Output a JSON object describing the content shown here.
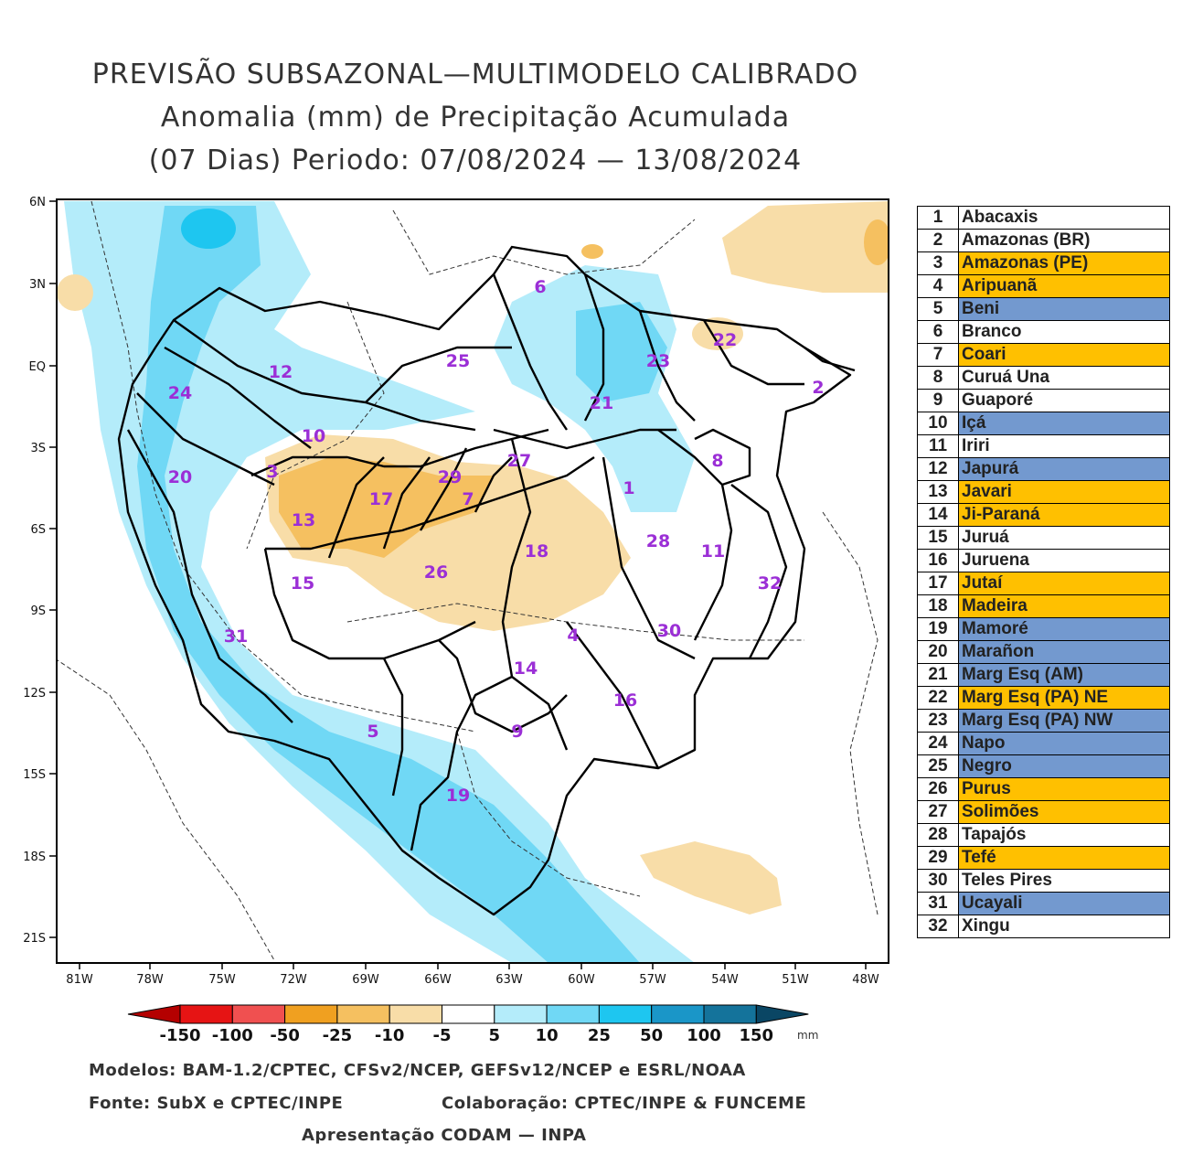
{
  "title": {
    "line1": "PREVISÃO SUBSAZONAL—MULTIMODELO CALIBRADO",
    "line2": "Anomalia (mm) de Precipitação Acumulada",
    "line3": "(07 Dias) Periodo: 07/08/2024 — 13/08/2024"
  },
  "axes": {
    "lat_labels": [
      "6N",
      "3N",
      "EQ",
      "3S",
      "6S",
      "9S",
      "12S",
      "15S",
      "18S",
      "21S"
    ],
    "lon_labels": [
      "81W",
      "78W",
      "75W",
      "72W",
      "69W",
      "66W",
      "63W",
      "60W",
      "57W",
      "54W",
      "51W",
      "48W"
    ]
  },
  "basin_labels": [
    "1",
    "2",
    "3",
    "4",
    "5",
    "6",
    "7",
    "8",
    "9",
    "10",
    "11",
    "12",
    "13",
    "14",
    "15",
    "16",
    "17",
    "18",
    "19",
    "20",
    "21",
    "22",
    "23",
    "24",
    "25",
    "26",
    "27",
    "28",
    "29",
    "30",
    "31",
    "32"
  ],
  "legend": [
    {
      "num": "1",
      "name": "Abacaxis",
      "color": "#ffffff"
    },
    {
      "num": "2",
      "name": "Amazonas (BR)",
      "color": "#ffffff"
    },
    {
      "num": "3",
      "name": "Amazonas (PE)",
      "color": "#ffc000"
    },
    {
      "num": "4",
      "name": "Aripuanã",
      "color": "#ffc000"
    },
    {
      "num": "5",
      "name": "Beni",
      "color": "#7399cf"
    },
    {
      "num": "6",
      "name": "Branco",
      "color": "#ffffff"
    },
    {
      "num": "7",
      "name": "Coari",
      "color": "#ffc000"
    },
    {
      "num": "8",
      "name": "Curuá Una",
      "color": "#ffffff"
    },
    {
      "num": "9",
      "name": "Guaporé",
      "color": "#ffffff"
    },
    {
      "num": "10",
      "name": "Içá",
      "color": "#7399cf"
    },
    {
      "num": "11",
      "name": "Iriri",
      "color": "#ffffff"
    },
    {
      "num": "12",
      "name": "Japurá",
      "color": "#7399cf"
    },
    {
      "num": "13",
      "name": "Javari",
      "color": "#ffc000"
    },
    {
      "num": "14",
      "name": "Ji-Paraná",
      "color": "#ffc000"
    },
    {
      "num": "15",
      "name": "Juruá",
      "color": "#ffffff"
    },
    {
      "num": "16",
      "name": "Juruena",
      "color": "#ffffff"
    },
    {
      "num": "17",
      "name": "Jutaí",
      "color": "#ffc000"
    },
    {
      "num": "18",
      "name": "Madeira",
      "color": "#ffc000"
    },
    {
      "num": "19",
      "name": "Mamoré",
      "color": "#7399cf"
    },
    {
      "num": "20",
      "name": "Marañon",
      "color": "#7399cf"
    },
    {
      "num": "21",
      "name": "Marg Esq (AM)",
      "color": "#7399cf"
    },
    {
      "num": "22",
      "name": "Marg Esq (PA) NE",
      "color": "#ffc000"
    },
    {
      "num": "23",
      "name": "Marg Esq (PA) NW",
      "color": "#7399cf"
    },
    {
      "num": "24",
      "name": "Napo",
      "color": "#7399cf"
    },
    {
      "num": "25",
      "name": "Negro",
      "color": "#7399cf"
    },
    {
      "num": "26",
      "name": "Purus",
      "color": "#ffc000"
    },
    {
      "num": "27",
      "name": "Solimões",
      "color": "#ffc000"
    },
    {
      "num": "28",
      "name": "Tapajós",
      "color": "#ffffff"
    },
    {
      "num": "29",
      "name": "Tefé",
      "color": "#ffc000"
    },
    {
      "num": "30",
      "name": "Teles Pires",
      "color": "#ffffff"
    },
    {
      "num": "31",
      "name": "Ucayali",
      "color": "#7399cf"
    },
    {
      "num": "32",
      "name": "Xingu",
      "color": "#ffffff"
    }
  ],
  "colorbar": {
    "labels": [
      "-150",
      "-100",
      "-50",
      "-25",
      "-10",
      "-5",
      "5",
      "10",
      "25",
      "50",
      "100",
      "150"
    ],
    "unit": "mm",
    "colors": [
      "#b40000",
      "#e61414",
      "#f05050",
      "#f0a020",
      "#f5c060",
      "#f8dda8",
      "#ffffff",
      "#b4ecfa",
      "#70d8f5",
      "#1ec6f0",
      "#1a96c8",
      "#14739b",
      "#0a4664"
    ]
  },
  "footer": {
    "models": "Modelos: BAM-1.2/CPTEC, CFSv2/NCEP, GEFSv12/NCEP e ESRL/NOAA",
    "source": "Fonte: SubX e CPTEC/INPE",
    "collab": "Colaboração: CPTEC/INPE & FUNCEME",
    "presentation": "Apresentação CODAM — INPA"
  }
}
